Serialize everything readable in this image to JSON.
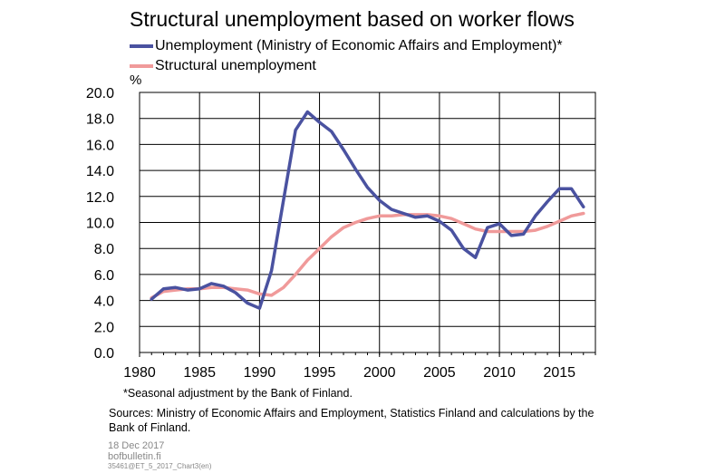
{
  "header": {
    "title": "Structural unemployment based on worker flows",
    "unit": "%"
  },
  "legend": [
    {
      "label": "Unemployment (Ministry of Economic Affairs and Employment)*",
      "color": "#4a52a0"
    },
    {
      "label": "Structural unemployment",
      "color": "#f09a9a"
    }
  ],
  "chart_data": {
    "type": "line",
    "title": "Structural unemployment based on worker flows",
    "ylabel": "%",
    "xlim": [
      1980,
      2018
    ],
    "ylim": [
      0,
      20
    ],
    "x_ticks": [
      "1980",
      "1985",
      "1990",
      "1995",
      "2000",
      "2005",
      "2010",
      "2015"
    ],
    "y_ticks": [
      "0.0",
      "2.0",
      "4.0",
      "6.0",
      "8.0",
      "10.0",
      "12.0",
      "14.0",
      "16.0",
      "18.0",
      "20.0"
    ],
    "grid": true,
    "legend_position": "top",
    "x": [
      1981,
      1982,
      1983,
      1984,
      1985,
      1986,
      1987,
      1988,
      1989,
      1990,
      1991,
      1992,
      1993,
      1994,
      1995,
      1996,
      1997,
      1998,
      1999,
      2000,
      2001,
      2002,
      2003,
      2004,
      2005,
      2006,
      2007,
      2008,
      2009,
      2010,
      2011,
      2012,
      2013,
      2014,
      2015,
      2016,
      2017
    ],
    "series": [
      {
        "name": "Unemployment (Ministry of Economic Affairs and Employment)*",
        "color": "#4a52a0",
        "values": [
          4.1,
          4.9,
          5.0,
          4.8,
          4.9,
          5.3,
          5.1,
          4.6,
          3.8,
          3.4,
          6.3,
          11.7,
          17.1,
          18.5,
          17.7,
          17.0,
          15.6,
          14.1,
          12.7,
          11.7,
          11.0,
          10.7,
          10.4,
          10.5,
          10.1,
          9.4,
          8.0,
          7.3,
          9.6,
          9.9,
          9.0,
          9.1,
          10.5,
          11.6,
          12.6,
          12.6,
          11.2
        ]
      },
      {
        "name": "Structural unemployment",
        "color": "#f09a9a",
        "values": [
          4.2,
          4.7,
          4.8,
          4.9,
          4.9,
          5.0,
          5.0,
          4.9,
          4.8,
          4.5,
          4.4,
          5.0,
          6.0,
          7.1,
          8.0,
          8.9,
          9.6,
          10.0,
          10.3,
          10.5,
          10.5,
          10.6,
          10.6,
          10.6,
          10.5,
          10.3,
          9.9,
          9.5,
          9.3,
          9.3,
          9.3,
          9.3,
          9.4,
          9.7,
          10.1,
          10.5,
          10.7
        ]
      }
    ]
  },
  "footer": {
    "note": "*Seasonal adjustment by the Bank of Finland.",
    "sources": "Sources: Ministry of Economic Affairs and Employment, Statistics Finland and calculations by the Bank of Finland.",
    "date": "18 Dec 2017",
    "site": "bofbulletin.fi",
    "code": "35461@ET_5_2017_Chart3(en)"
  }
}
